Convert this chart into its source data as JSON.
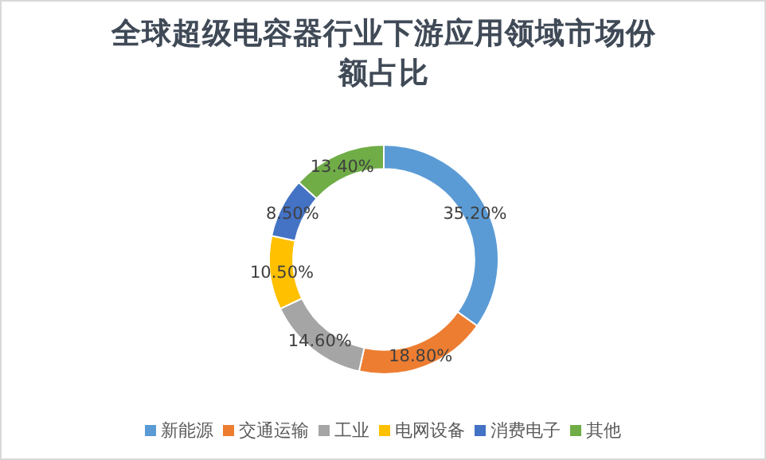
{
  "chart_data": {
    "type": "donut",
    "title": "全球超级电容器行业下游应用领域市场份额占比",
    "categories": [
      "新能源",
      "交通运输",
      "工业",
      "电网设备",
      "消费电子",
      "其他"
    ],
    "values": [
      35.2,
      18.8,
      14.6,
      10.5,
      8.5,
      13.4
    ],
    "value_labels": [
      "35.20%",
      "18.80%",
      "14.60%",
      "10.50%",
      "8.50%",
      "13.40%"
    ],
    "colors": [
      "#5b9bd5",
      "#ed7d31",
      "#a5a5a5",
      "#ffc000",
      "#4472c4",
      "#70ad47"
    ],
    "legend": "bottom"
  }
}
